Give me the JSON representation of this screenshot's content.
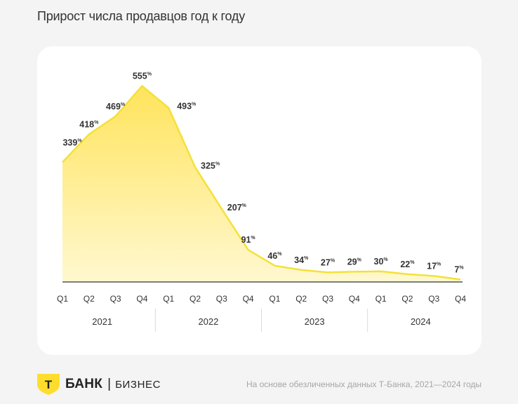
{
  "title": "Прирост числа продавцов год к году",
  "brand": {
    "logo_letter": "Т",
    "name": "БАНК",
    "separator": "|",
    "subtitle": "БИЗНЕС",
    "color": "#FFDD2D"
  },
  "source_note": "На основе обезличенных данных Т-Банка, 2021—2024 годы",
  "colors": {
    "line": "#F5E03A",
    "area_top": "#FFE45C",
    "area_bottom": "#FFF8D0",
    "baseline": "#333333",
    "label": "#333333",
    "divider": "#d9d9d9"
  },
  "chart_data": {
    "type": "area",
    "title": "Прирост числа продавцов год к году",
    "unit": "%",
    "ylim": [
      0,
      560
    ],
    "grid": false,
    "categories": [
      "Q1",
      "Q2",
      "Q3",
      "Q4",
      "Q1",
      "Q2",
      "Q3",
      "Q4",
      "Q1",
      "Q2",
      "Q3",
      "Q4",
      "Q1",
      "Q2",
      "Q3",
      "Q4"
    ],
    "groups": [
      {
        "label": "2021",
        "span": 4
      },
      {
        "label": "2022",
        "span": 4
      },
      {
        "label": "2023",
        "span": 4
      },
      {
        "label": "2024",
        "span": 4
      }
    ],
    "series": [
      {
        "name": "Прирост, %",
        "values": [
          339,
          418,
          469,
          555,
          493,
          325,
          207,
          91,
          46,
          34,
          27,
          29,
          30,
          22,
          17,
          7
        ]
      }
    ]
  }
}
